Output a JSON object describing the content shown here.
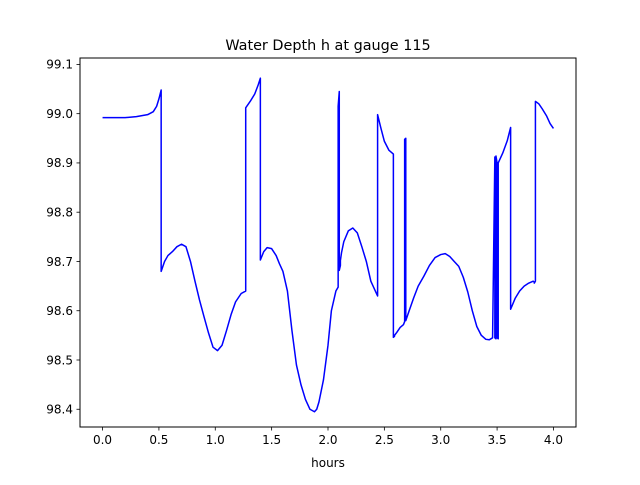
{
  "chart_data": {
    "type": "line",
    "title": "Water Depth h at gauge 115",
    "xlabel": "hours",
    "ylabel": "",
    "xlim": [
      -0.2,
      4.2
    ],
    "ylim": [
      98.364,
      99.113
    ],
    "x_ticks": [
      0.0,
      0.5,
      1.0,
      1.5,
      2.0,
      2.5,
      3.0,
      3.5,
      4.0
    ],
    "x_tick_labels": [
      "0.0",
      "0.5",
      "1.0",
      "1.5",
      "2.0",
      "2.5",
      "3.0",
      "3.5",
      "4.0"
    ],
    "y_ticks": [
      98.4,
      98.5,
      98.6,
      98.7,
      98.8,
      98.9,
      99.0,
      99.1
    ],
    "y_tick_labels": [
      "98.4",
      "98.5",
      "98.6",
      "98.7",
      "98.8",
      "98.9",
      "99.0",
      "99.1"
    ],
    "grid": false,
    "series": [
      {
        "color": "#0000ff",
        "x": [
          0.0,
          0.1,
          0.2,
          0.3,
          0.4,
          0.45,
          0.48,
          0.5,
          0.52,
          0.52,
          0.55,
          0.58,
          0.62,
          0.66,
          0.7,
          0.74,
          0.78,
          0.82,
          0.86,
          0.9,
          0.94,
          0.98,
          1.02,
          1.06,
          1.1,
          1.14,
          1.18,
          1.23,
          1.27,
          1.27,
          1.31,
          1.35,
          1.38,
          1.4,
          1.4,
          1.43,
          1.46,
          1.5,
          1.54,
          1.57,
          1.6,
          1.64,
          1.68,
          1.72,
          1.76,
          1.8,
          1.84,
          1.88,
          1.9,
          1.92,
          1.96,
          2.0,
          2.03,
          2.07,
          2.09,
          2.09,
          2.1,
          2.1,
          2.11,
          2.11,
          2.12,
          2.14,
          2.18,
          2.22,
          2.26,
          2.3,
          2.34,
          2.38,
          2.42,
          2.44,
          2.44,
          2.47,
          2.5,
          2.54,
          2.58,
          2.58,
          2.59,
          2.59,
          2.61,
          2.64,
          2.67,
          2.68,
          2.68,
          2.69,
          2.69,
          2.72,
          2.76,
          2.8,
          2.85,
          2.9,
          2.95,
          3.0,
          3.04,
          3.08,
          3.12,
          3.16,
          3.2,
          3.24,
          3.28,
          3.32,
          3.36,
          3.4,
          3.43,
          3.46,
          3.48,
          3.48,
          3.49,
          3.49,
          3.5,
          3.5,
          3.51,
          3.51,
          3.55,
          3.59,
          3.62,
          3.62,
          3.66,
          3.7,
          3.74,
          3.78,
          3.82,
          3.83,
          3.83,
          3.84,
          3.84,
          3.87,
          3.9,
          3.94,
          3.97,
          4.0
        ],
        "values": [
          98.992,
          98.992,
          98.992,
          98.994,
          98.998,
          99.004,
          99.015,
          99.03,
          99.048,
          98.68,
          98.7,
          98.712,
          98.72,
          98.73,
          98.735,
          98.73,
          98.7,
          98.66,
          98.622,
          98.588,
          98.555,
          98.526,
          98.519,
          98.53,
          98.56,
          98.592,
          98.618,
          98.635,
          98.64,
          99.012,
          99.025,
          99.04,
          99.058,
          99.072,
          98.703,
          98.72,
          98.728,
          98.726,
          98.712,
          98.695,
          98.68,
          98.64,
          98.56,
          98.49,
          98.45,
          98.42,
          98.4,
          98.395,
          98.4,
          98.415,
          98.46,
          98.53,
          98.6,
          98.64,
          98.648,
          99.015,
          99.045,
          98.682,
          98.692,
          98.702,
          98.718,
          98.74,
          98.762,
          98.768,
          98.758,
          98.73,
          98.7,
          98.66,
          98.64,
          98.63,
          98.998,
          98.97,
          98.944,
          98.926,
          98.918,
          98.546,
          98.548,
          98.55,
          98.556,
          98.566,
          98.572,
          98.578,
          98.948,
          98.95,
          98.58,
          98.6,
          98.626,
          98.65,
          98.67,
          98.692,
          98.708,
          98.714,
          98.716,
          98.71,
          98.7,
          98.69,
          98.668,
          98.638,
          98.6,
          98.568,
          98.55,
          98.542,
          98.541,
          98.545,
          98.912,
          98.545,
          98.543,
          98.914,
          98.9,
          98.545,
          98.543,
          98.9,
          98.92,
          98.945,
          98.972,
          98.603,
          98.625,
          98.64,
          98.65,
          98.656,
          98.66,
          98.658,
          98.656,
          98.66,
          99.025,
          99.02,
          99.01,
          98.995,
          98.98,
          98.97
        ]
      }
    ]
  }
}
